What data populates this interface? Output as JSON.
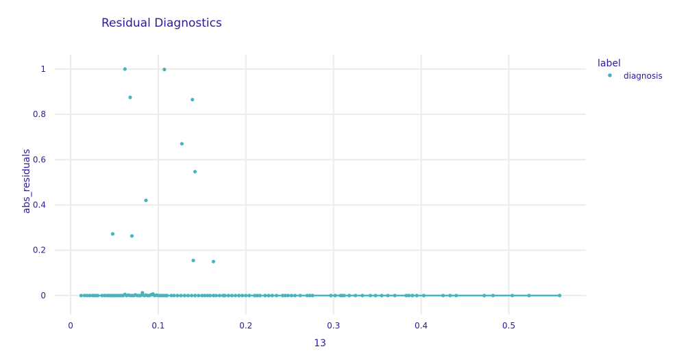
{
  "chart_data": {
    "type": "scatter",
    "title": "Residual Diagnostics",
    "xlabel": "13",
    "ylabel": "abs_residuals",
    "xlim": [
      -0.018,
      0.588
    ],
    "ylim": [
      -0.085,
      1.063
    ],
    "x_ticks": [
      0,
      0.1,
      0.2,
      0.3,
      0.4,
      0.5
    ],
    "x_tick_labels": [
      "0",
      "0.1",
      "0.2",
      "0.3",
      "0.4",
      "0.5"
    ],
    "y_ticks": [
      0,
      0.2,
      0.4,
      0.6,
      0.8,
      1
    ],
    "y_tick_labels": [
      "0",
      "0.2",
      "0.4",
      "0.6",
      "0.8",
      "1"
    ],
    "grid": true,
    "legend": {
      "title": "label",
      "placement": "top-right",
      "entries": [
        "diagnosis"
      ]
    },
    "colors": {
      "points": "#46b4bd",
      "trend_line": "#46b4bd",
      "text": "#2a1a99",
      "grid": "#ebebeb"
    },
    "series": [
      {
        "name": "diagnosis",
        "points": [
          [
            0.062,
            1.0
          ],
          [
            0.107,
            0.998
          ],
          [
            0.068,
            0.875
          ],
          [
            0.139,
            0.865
          ],
          [
            0.127,
            0.67
          ],
          [
            0.142,
            0.547
          ],
          [
            0.086,
            0.42
          ],
          [
            0.048,
            0.272
          ],
          [
            0.07,
            0.263
          ],
          [
            0.14,
            0.155
          ],
          [
            0.163,
            0.15
          ],
          [
            0.012,
            0.0
          ],
          [
            0.016,
            0.0
          ],
          [
            0.019,
            0.0
          ],
          [
            0.022,
            0.0
          ],
          [
            0.025,
            0.0
          ],
          [
            0.027,
            0.0
          ],
          [
            0.029,
            0.0
          ],
          [
            0.031,
            0.0
          ],
          [
            0.036,
            0.0
          ],
          [
            0.039,
            0.0
          ],
          [
            0.042,
            0.0
          ],
          [
            0.044,
            0.0
          ],
          [
            0.046,
            0.0
          ],
          [
            0.048,
            0.0
          ],
          [
            0.05,
            0.0
          ],
          [
            0.052,
            0.0
          ],
          [
            0.054,
            0.0
          ],
          [
            0.056,
            0.0
          ],
          [
            0.058,
            0.0
          ],
          [
            0.06,
            0.0
          ],
          [
            0.062,
            0.005
          ],
          [
            0.064,
            0.0
          ],
          [
            0.066,
            0.002
          ],
          [
            0.068,
            0.0
          ],
          [
            0.07,
            0.0
          ],
          [
            0.072,
            0.0
          ],
          [
            0.074,
            0.003
          ],
          [
            0.076,
            0.0
          ],
          [
            0.078,
            0.0
          ],
          [
            0.08,
            0.0
          ],
          [
            0.082,
            0.012
          ],
          [
            0.084,
            0.0
          ],
          [
            0.086,
            0.002
          ],
          [
            0.088,
            0.0
          ],
          [
            0.09,
            0.0
          ],
          [
            0.092,
            0.004
          ],
          [
            0.094,
            0.007
          ],
          [
            0.096,
            0.0
          ],
          [
            0.098,
            0.002
          ],
          [
            0.1,
            0.0
          ],
          [
            0.102,
            0.0
          ],
          [
            0.104,
            0.0
          ],
          [
            0.106,
            0.0
          ],
          [
            0.108,
            0.0
          ],
          [
            0.11,
            0.0
          ],
          [
            0.115,
            0.0
          ],
          [
            0.118,
            0.0
          ],
          [
            0.122,
            0.0
          ],
          [
            0.126,
            0.0
          ],
          [
            0.13,
            0.0
          ],
          [
            0.134,
            0.0
          ],
          [
            0.138,
            0.0
          ],
          [
            0.142,
            0.0
          ],
          [
            0.146,
            0.0
          ],
          [
            0.15,
            0.0
          ],
          [
            0.153,
            0.0
          ],
          [
            0.156,
            0.0
          ],
          [
            0.159,
            0.0
          ],
          [
            0.163,
            0.0
          ],
          [
            0.166,
            0.0
          ],
          [
            0.17,
            0.0
          ],
          [
            0.174,
            0.0
          ],
          [
            0.176,
            0.0
          ],
          [
            0.18,
            0.0
          ],
          [
            0.184,
            0.0
          ],
          [
            0.188,
            0.0
          ],
          [
            0.192,
            0.0
          ],
          [
            0.196,
            0.0
          ],
          [
            0.2,
            0.0
          ],
          [
            0.204,
            0.0
          ],
          [
            0.21,
            0.0
          ],
          [
            0.213,
            0.0
          ],
          [
            0.216,
            0.0
          ],
          [
            0.222,
            0.0
          ],
          [
            0.226,
            0.0
          ],
          [
            0.23,
            0.0
          ],
          [
            0.235,
            0.0
          ],
          [
            0.242,
            0.0
          ],
          [
            0.245,
            0.0
          ],
          [
            0.248,
            0.0
          ],
          [
            0.252,
            0.0
          ],
          [
            0.256,
            0.0
          ],
          [
            0.262,
            0.0
          ],
          [
            0.27,
            0.0
          ],
          [
            0.273,
            0.0
          ],
          [
            0.276,
            0.0
          ],
          [
            0.297,
            0.0
          ],
          [
            0.302,
            0.0
          ],
          [
            0.308,
            0.0
          ],
          [
            0.31,
            0.0
          ],
          [
            0.312,
            0.0
          ],
          [
            0.318,
            0.0
          ],
          [
            0.325,
            0.0
          ],
          [
            0.333,
            0.0
          ],
          [
            0.342,
            0.0
          ],
          [
            0.348,
            0.0
          ],
          [
            0.355,
            0.0
          ],
          [
            0.362,
            0.0
          ],
          [
            0.37,
            0.0
          ],
          [
            0.383,
            0.0
          ],
          [
            0.386,
            0.0
          ],
          [
            0.39,
            0.0
          ],
          [
            0.395,
            0.0
          ],
          [
            0.403,
            0.0
          ],
          [
            0.425,
            0.0
          ],
          [
            0.433,
            0.0
          ],
          [
            0.44,
            0.0
          ],
          [
            0.472,
            0.0
          ],
          [
            0.482,
            0.0
          ],
          [
            0.504,
            0.0
          ],
          [
            0.523,
            0.0
          ],
          [
            0.558,
            0.0
          ]
        ]
      }
    ],
    "trend_line": {
      "x": [
        0.012,
        0.558
      ],
      "y": [
        0.0,
        0.0
      ]
    }
  }
}
